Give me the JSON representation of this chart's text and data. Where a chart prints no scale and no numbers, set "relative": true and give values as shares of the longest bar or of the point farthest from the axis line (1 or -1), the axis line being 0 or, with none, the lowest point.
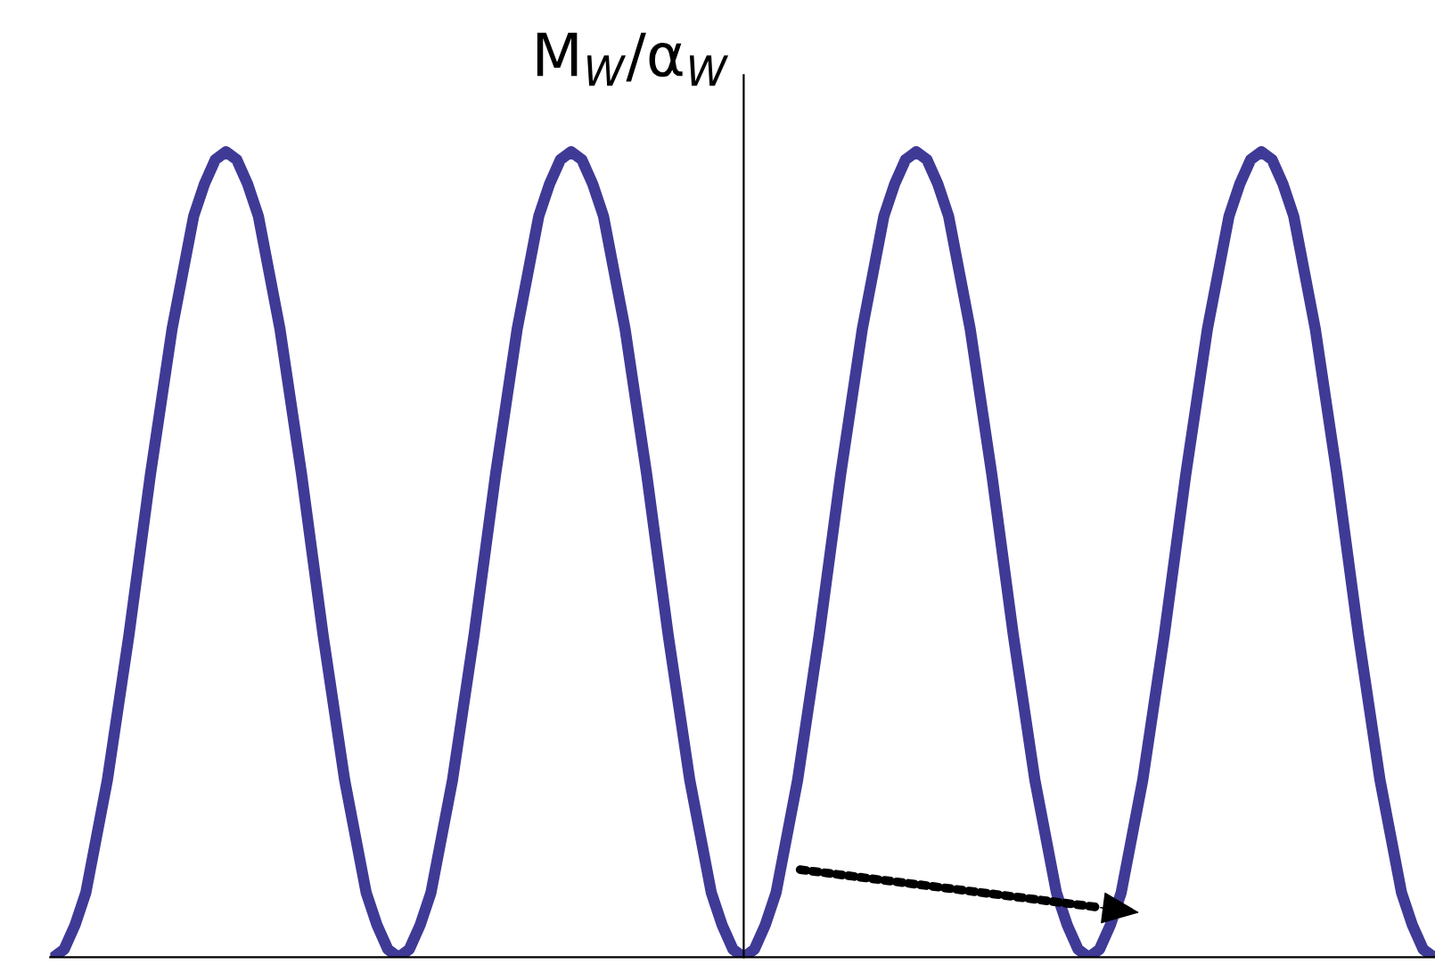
{
  "chart_data": {
    "type": "line",
    "ylabel": "M$_{W}$/α$_{W}$",
    "relative": true,
    "grid": false,
    "legend": false,
    "marker": "none",
    "line_style": "solid",
    "categories": [
      null,
      null,
      null,
      null,
      null,
      null,
      null,
      null,
      null,
      null,
      null,
      null,
      null,
      null,
      null,
      null,
      null,
      null,
      null,
      null,
      null,
      null,
      null,
      null,
      null,
      null,
      null,
      null,
      null,
      null,
      null,
      null,
      null,
      null,
      null,
      null,
      null,
      null,
      null,
      null,
      null,
      null,
      null,
      null,
      null,
      null,
      null,
      null,
      null,
      null,
      null,
      null,
      null,
      null,
      null,
      null,
      null,
      null,
      null,
      null,
      null,
      null,
      null,
      null,
      null,
      null,
      null,
      null,
      null,
      null,
      null,
      null,
      null,
      null,
      null,
      null,
      null,
      null,
      null,
      null,
      null,
      null,
      null,
      null,
      null,
      null,
      null,
      null,
      null,
      null,
      null,
      null,
      null,
      null,
      null,
      null,
      null,
      null,
      null,
      null,
      null,
      null,
      null,
      null,
      null,
      null,
      null,
      null,
      null,
      null,
      null,
      null,
      null,
      null,
      null,
      null,
      null,
      null,
      null,
      null,
      null,
      null,
      null,
      null,
      null,
      null,
      null,
      null,
      null
    ],
    "series": [
      {
        "color": "#3f3a96",
        "values": [
          0,
          0.01,
          0.04,
          0.08,
          0.15,
          0.22,
          0.31,
          0.4,
          0.5,
          0.6,
          0.69,
          0.78,
          0.85,
          0.92,
          0.96,
          0.99,
          1,
          0.99,
          0.96,
          0.92,
          0.85,
          0.78,
          0.69,
          0.6,
          0.5,
          0.4,
          0.31,
          0.22,
          0.15,
          0.08,
          0.04,
          0.01,
          0,
          0.01,
          0.04,
          0.08,
          0.15,
          0.22,
          0.31,
          0.4,
          0.5,
          0.6,
          0.69,
          0.78,
          0.85,
          0.92,
          0.96,
          0.99,
          1,
          0.99,
          0.96,
          0.92,
          0.85,
          0.78,
          0.69,
          0.6,
          0.5,
          0.4,
          0.31,
          0.22,
          0.15,
          0.08,
          0.04,
          0.01,
          0,
          0.01,
          0.04,
          0.08,
          0.15,
          0.22,
          0.31,
          0.4,
          0.5,
          0.6,
          0.69,
          0.78,
          0.85,
          0.92,
          0.96,
          0.99,
          1,
          0.99,
          0.96,
          0.92,
          0.85,
          0.78,
          0.69,
          0.6,
          0.5,
          0.4,
          0.31,
          0.22,
          0.15,
          0.08,
          0.04,
          0.01,
          0,
          0.01,
          0.04,
          0.08,
          0.15,
          0.22,
          0.31,
          0.4,
          0.5,
          0.6,
          0.69,
          0.78,
          0.85,
          0.92,
          0.96,
          0.99,
          1,
          0.99,
          0.96,
          0.92,
          0.85,
          0.78,
          0.69,
          0.6,
          0.5,
          0.4,
          0.31,
          0.22,
          0.15,
          0.08,
          0.04,
          0.01,
          0
        ]
      }
    ]
  }
}
